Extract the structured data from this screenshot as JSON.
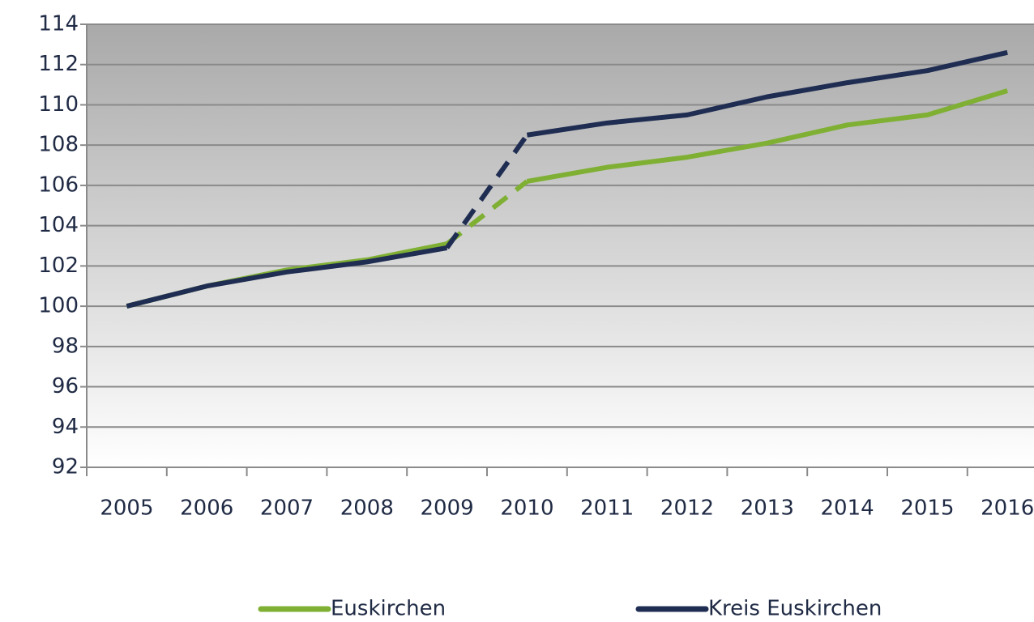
{
  "chart_data": {
    "type": "line",
    "categories": [
      "2005",
      "2006",
      "2007",
      "2008",
      "2009",
      "2010",
      "2011",
      "2012",
      "2013",
      "2014",
      "2015",
      "2016"
    ],
    "series": [
      {
        "name": "Euskirchen",
        "color": "#7fb034",
        "values": [
          100,
          101,
          101.8,
          102.3,
          103.1,
          106.2,
          106.9,
          107.4,
          108.1,
          109,
          109.5,
          110.7
        ]
      },
      {
        "name": "Kreis Euskirchen",
        "color": "#1f2d52",
        "values": [
          100,
          101,
          101.7,
          102.2,
          102.9,
          108.5,
          109.1,
          109.5,
          110.4,
          111.1,
          111.7,
          112.6
        ]
      }
    ],
    "dashed_segment": [
      4,
      5
    ],
    "ylim": [
      92,
      114
    ],
    "yticks": [
      92,
      94,
      96,
      98,
      100,
      102,
      104,
      106,
      108,
      110,
      112,
      114
    ],
    "grid": true,
    "legend": "bottom"
  }
}
